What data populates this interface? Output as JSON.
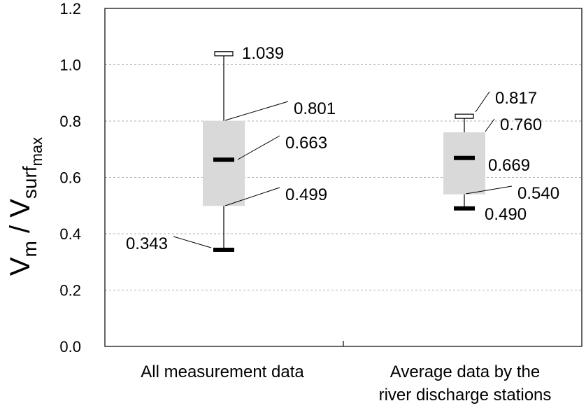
{
  "chart_data": {
    "type": "box",
    "title": "",
    "xlabel": "",
    "ylabel": {
      "main": "V",
      "sub1": "m",
      "sep": " / V",
      "sub2": "surf",
      "subsub": "max"
    },
    "ylim": [
      0.0,
      1.2
    ],
    "yticks": [
      "0.0",
      "0.2",
      "0.4",
      "0.6",
      "0.8",
      "1.0",
      "1.2"
    ],
    "grid": true,
    "colors": {
      "box": "#d9d9d9",
      "grid": "#b0b0b0",
      "line": "#000000"
    },
    "boxes": [
      {
        "category_lines": [
          "All measurement data"
        ],
        "max": 1.039,
        "q3": 0.801,
        "median": 0.663,
        "q1": 0.499,
        "min": 0.343,
        "labels": {
          "max": "1.039",
          "q3": "0.801",
          "median": "0.663",
          "q1": "0.499",
          "min": "0.343"
        }
      },
      {
        "category_lines": [
          "Average data by the",
          "river discharge stations"
        ],
        "max": 0.817,
        "q3": 0.76,
        "median": 0.669,
        "q1": 0.54,
        "min": 0.49,
        "labels": {
          "max": "0.817",
          "q3": "0.760",
          "median": "0.669",
          "q1": "0.540",
          "min": "0.490"
        }
      }
    ]
  }
}
